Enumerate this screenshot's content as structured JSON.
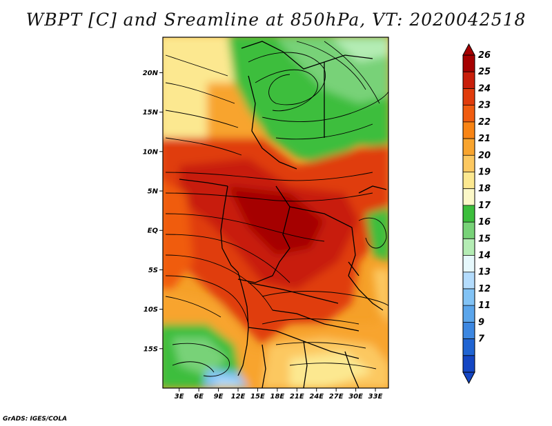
{
  "title": "WBPT [C] and Sreamline at 850hPa, VT: 2020042518",
  "credit": "GrADS: IGES/COLA",
  "lat_labels": [
    "20N",
    "15N",
    "10N",
    "5N",
    "EQ",
    "5S",
    "10S",
    "15S"
  ],
  "lat_values": [
    20,
    15,
    10,
    5,
    0,
    -5,
    -10,
    -15
  ],
  "lon_labels": [
    "3E",
    "6E",
    "9E",
    "12E",
    "15E",
    "18E",
    "21E",
    "24E",
    "27E",
    "30E",
    "33E"
  ],
  "lon_values": [
    3,
    6,
    9,
    12,
    15,
    18,
    21,
    24,
    27,
    30,
    33
  ],
  "extent": {
    "lon_min": 0.5,
    "lon_max": 35.0,
    "lat_min": -20.0,
    "lat_max": 24.5
  },
  "colorbar": {
    "labels": [
      "26",
      "25",
      "24",
      "23",
      "22",
      "21",
      "20",
      "19",
      "18",
      "17",
      "16",
      "15",
      "14",
      "13",
      "12",
      "11",
      "9",
      "7"
    ],
    "colors": [
      "#a50000",
      "#c81e0a",
      "#e03c0c",
      "#f05c10",
      "#f88414",
      "#f8a42e",
      "#fcc860",
      "#fce890",
      "#fcf8c8",
      "#3cbe3c",
      "#78d278",
      "#b4ecb4",
      "#e6f8fc",
      "#b4dcfc",
      "#82c3f5",
      "#5aa5eb",
      "#3c87e1",
      "#2064d2",
      "#1446c3"
    ]
  },
  "palette": {
    "dark_red": "#a50000",
    "red": "#c81e0a",
    "red_orange": "#e03c0c",
    "orange": "#f05c10",
    "orange2": "#f88414",
    "orange3": "#f8a42e",
    "light_orange": "#fcc860",
    "yellow": "#fce890",
    "pale_yellow": "#fcf8c8",
    "green": "#3cbe3c",
    "light_green": "#78d278",
    "pale_green": "#b4ecb4",
    "light_blue": "#b4dcfc",
    "blue": "#82c3f5"
  }
}
